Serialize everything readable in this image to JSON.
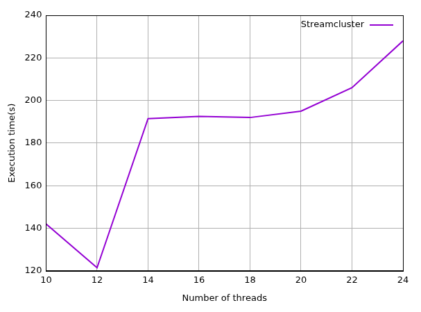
{
  "chart_data": {
    "type": "line",
    "x_label": "Number of threads",
    "y_label": "Execution time(s)",
    "x": [
      10,
      12,
      14,
      16,
      18,
      20,
      22,
      24
    ],
    "series": [
      {
        "name": "Streamcluster",
        "color": "#9400d3",
        "values": [
          142,
          121.5,
          191.5,
          192.5,
          192,
          195,
          206,
          228
        ]
      }
    ],
    "xlim": [
      10,
      24
    ],
    "xticks": [
      10,
      12,
      14,
      16,
      18,
      20,
      22,
      24
    ],
    "ylim": [
      120,
      240
    ],
    "yticks": [
      120,
      140,
      160,
      180,
      200,
      220,
      240
    ],
    "grid": true,
    "legend": "top-right"
  }
}
